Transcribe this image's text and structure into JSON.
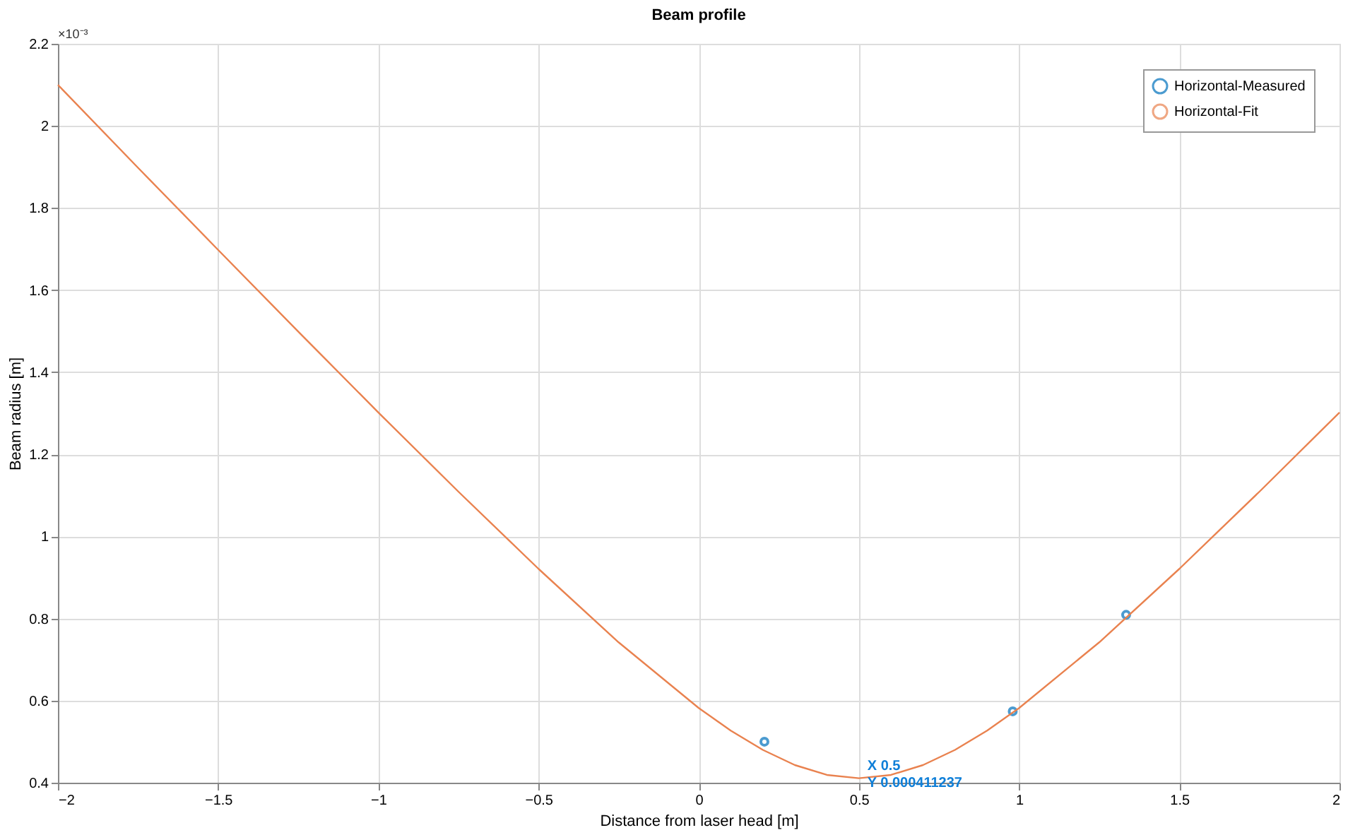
{
  "chart_data": {
    "type": "line",
    "title": "Beam profile",
    "xlabel": "Distance from laser head [m]",
    "ylabel": "Beam radius [m]",
    "xlim": [
      -2,
      2
    ],
    "xticks": [
      -2,
      -1.5,
      -1,
      -0.5,
      0,
      0.5,
      1,
      1.5,
      2
    ],
    "ylim": [
      0.4,
      2.2
    ],
    "yticks": [
      0.4,
      0.6,
      0.8,
      1,
      1.2,
      1.4,
      1.6,
      1.8,
      2,
      2.2
    ],
    "grid": true,
    "legend": "top right",
    "series": [
      {
        "name": "Horizontal-Measured",
        "type": "scatter",
        "marker": "circle",
        "color": "#0072bd",
        "x": [
          0.205,
          0.98,
          1.334
        ],
        "values": [
          0.5,
          0.574,
          0.809
        ]
      },
      {
        "name": "Horizontal-Fit",
        "marker": "none",
        "line_style": "solid",
        "color": "#e9824f",
        "x": [
          -2,
          -1.75,
          -1.5,
          -1.25,
          -1,
          -0.75,
          -0.5,
          -0.25,
          0,
          0.1,
          0.2,
          0.3,
          0.4,
          0.5,
          0.6,
          0.7,
          0.8,
          0.9,
          1,
          1.25,
          1.5,
          1.75,
          2
        ],
        "values": [
          2.1,
          1.898,
          1.698,
          1.499,
          1.302,
          1.109,
          0.921,
          0.742,
          0.582,
          0.527,
          0.48,
          0.443,
          0.419,
          0.411,
          0.419,
          0.443,
          0.48,
          0.527,
          0.582,
          0.742,
          0.921,
          1.109,
          1.302
        ]
      }
    ],
    "annotations": [
      "×10⁻³",
      {
        "text": "X 0.5\nY 0.000411237",
        "x": 0.5,
        "y": 0.411
      }
    ]
  }
}
